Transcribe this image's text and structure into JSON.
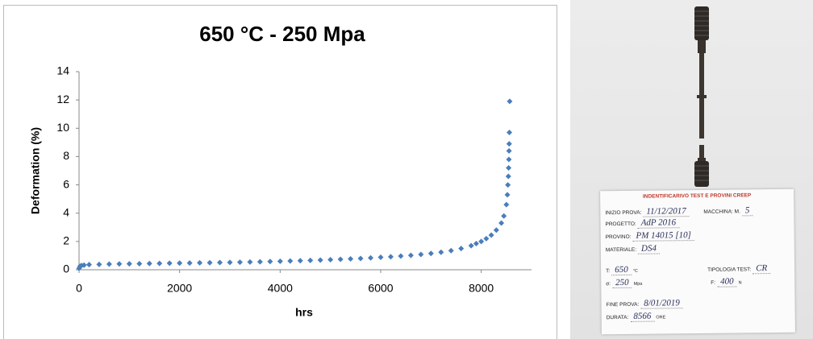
{
  "chart_data": {
    "type": "scatter",
    "title": "650 °C - 250 Mpa",
    "x_label": "hrs",
    "y_label": "Deformation (%)",
    "color": "#4a7ebb",
    "x": [
      0,
      20,
      50,
      100,
      200,
      400,
      600,
      800,
      1000,
      1200,
      1400,
      1600,
      1800,
      2000,
      2200,
      2400,
      2600,
      2800,
      3000,
      3200,
      3400,
      3600,
      3800,
      4000,
      4200,
      4400,
      4600,
      4800,
      5000,
      5200,
      5400,
      5600,
      5800,
      6000,
      6200,
      6400,
      6600,
      6800,
      7000,
      7200,
      7400,
      7600,
      7800,
      7900,
      8000,
      8100,
      8200,
      8300,
      8400,
      8450,
      8500,
      8520,
      8530,
      8540,
      8545,
      8550,
      8553,
      8556,
      8560,
      8566
    ],
    "values": [
      0.1,
      0.25,
      0.3,
      0.33,
      0.36,
      0.38,
      0.4,
      0.41,
      0.42,
      0.43,
      0.44,
      0.45,
      0.46,
      0.47,
      0.48,
      0.49,
      0.5,
      0.51,
      0.52,
      0.53,
      0.55,
      0.56,
      0.58,
      0.6,
      0.62,
      0.64,
      0.66,
      0.68,
      0.71,
      0.74,
      0.77,
      0.8,
      0.84,
      0.88,
      0.92,
      0.97,
      1.02,
      1.08,
      1.15,
      1.24,
      1.35,
      1.5,
      1.7,
      1.85,
      2.0,
      2.2,
      2.45,
      2.8,
      3.3,
      3.8,
      4.6,
      5.3,
      6.0,
      6.6,
      7.2,
      7.8,
      8.4,
      8.9,
      9.7,
      11.9
    ],
    "xlim": [
      0,
      9000
    ],
    "xticks": [
      0,
      2000,
      4000,
      6000,
      8000
    ],
    "ylim": [
      0,
      14
    ],
    "yticks": [
      0,
      2,
      4,
      6,
      8,
      10,
      12,
      14
    ]
  },
  "card": {
    "heading": "INDENTIFICARIVO TEST E PROVINI CREEP",
    "fields": [
      {
        "label": "INIZIO PROVA:",
        "value": "11/12/2017"
      },
      {
        "label": "MACCHINA: M.",
        "value": "5"
      },
      {
        "label": "PROGETTO:",
        "value": "AdP 2016"
      },
      {
        "label": "PROVINO:",
        "value": "PM 14015 [10]"
      },
      {
        "label": "MATERIALE:",
        "value": "DS4"
      },
      {
        "label": "T:",
        "value": "650",
        "unit": "°C"
      },
      {
        "label": "TIPOLOGIA TEST:",
        "value": "CR"
      },
      {
        "label": "σ:",
        "value": "250",
        "unit": "Mpa"
      },
      {
        "label": "F:",
        "value": "400",
        "unit": "N"
      },
      {
        "label": "FINE PROVA:",
        "value": "8/01/2019"
      },
      {
        "label": "DURATA:",
        "value": "8566",
        "unit": "ORE"
      }
    ]
  }
}
